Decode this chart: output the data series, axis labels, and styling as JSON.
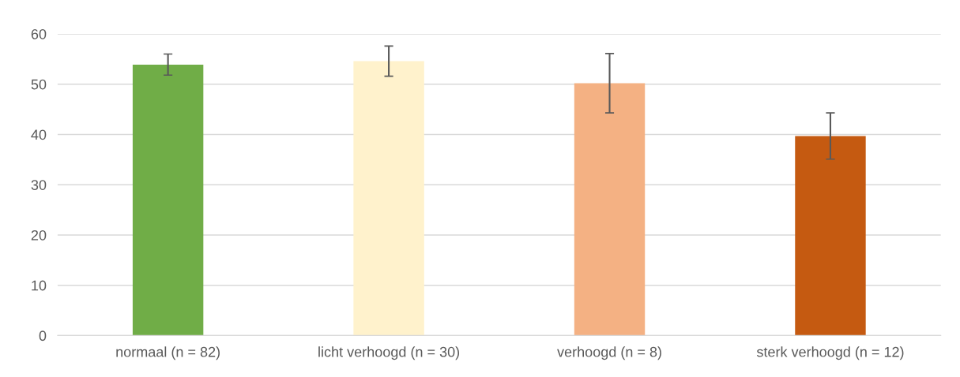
{
  "chart_data": {
    "type": "bar",
    "categories": [
      "normaal (n = 82)",
      "licht verhoogd (n = 30)",
      "verhoogd (n = 8)",
      "sterk verhoogd (n = 12)"
    ],
    "values": [
      53.9,
      54.6,
      50.2,
      39.7
    ],
    "colors": [
      "#70ad47",
      "#fff2cc",
      "#f4b183",
      "#c55a11"
    ],
    "errors": [
      2.1,
      3.0,
      5.9,
      4.6
    ],
    "ylim": [
      0,
      60
    ],
    "yticks": [
      0,
      10,
      20,
      30,
      40,
      50,
      60
    ],
    "grid": "y"
  }
}
